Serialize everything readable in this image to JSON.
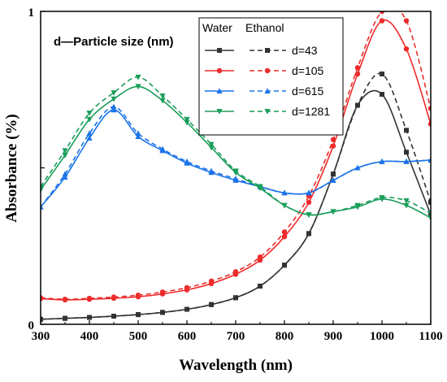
{
  "chart_data": {
    "type": "line",
    "title": "",
    "xlabel": "Wavelength (nm)",
    "ylabel": "Absorbance (%)",
    "xlim": [
      300,
      1100
    ],
    "ylim": [
      0,
      1
    ],
    "xticks": [
      300,
      400,
      500,
      600,
      700,
      800,
      900,
      1000,
      1100
    ],
    "yticks": [
      0,
      1
    ],
    "grid": false,
    "annotation": "d—Particle size (nm)",
    "legend": {
      "position": "top-right",
      "header_solid": "Water",
      "header_dashed": "Ethanol"
    },
    "x": [
      300,
      350,
      400,
      450,
      500,
      550,
      600,
      650,
      700,
      750,
      800,
      850,
      900,
      950,
      1000,
      1050,
      1100
    ],
    "series": [
      {
        "name": "d=43",
        "color": "#333333",
        "marker": "square",
        "water": [
          0.016,
          0.019,
          0.022,
          0.026,
          0.031,
          0.038,
          0.048,
          0.063,
          0.085,
          0.122,
          0.189,
          0.29,
          0.48,
          0.7,
          0.735,
          0.55,
          0.35
        ],
        "ethanol": [
          0.016,
          0.019,
          0.022,
          0.026,
          0.031,
          0.038,
          0.048,
          0.063,
          0.085,
          0.122,
          0.189,
          0.29,
          0.48,
          0.7,
          0.8,
          0.62,
          0.39
        ]
      },
      {
        "name": "d=105",
        "color": "#ee2b2b",
        "marker": "circle",
        "water": [
          0.082,
          0.078,
          0.08,
          0.083,
          0.088,
          0.097,
          0.11,
          0.13,
          0.16,
          0.205,
          0.28,
          0.39,
          0.57,
          0.8,
          0.97,
          0.88,
          0.64
        ],
        "ethanol": [
          0.085,
          0.08,
          0.083,
          0.087,
          0.093,
          0.103,
          0.117,
          0.138,
          0.168,
          0.215,
          0.295,
          0.41,
          0.59,
          0.82,
          1.0,
          0.97,
          0.69
        ]
      },
      {
        "name": "d=615",
        "color": "#1a73e8",
        "marker": "triangle-up",
        "water": [
          0.375,
          0.47,
          0.595,
          0.685,
          0.6,
          0.555,
          0.515,
          0.485,
          0.46,
          0.44,
          0.42,
          0.42,
          0.46,
          0.5,
          0.52,
          0.52,
          0.525
        ],
        "ethanol": [
          0.375,
          0.48,
          0.61,
          0.695,
          0.61,
          0.56,
          0.52,
          0.49,
          0.465,
          0.44,
          0.42,
          0.42,
          0.46,
          0.5,
          0.52,
          0.52,
          0.525
        ]
      },
      {
        "name": "d=1281",
        "color": "#1a9e5a",
        "marker": "triangle-down",
        "water": [
          0.43,
          0.54,
          0.655,
          0.72,
          0.76,
          0.715,
          0.645,
          0.565,
          0.485,
          0.435,
          0.38,
          0.35,
          0.36,
          0.375,
          0.4,
          0.38,
          0.34
        ],
        "ethanol": [
          0.44,
          0.555,
          0.675,
          0.74,
          0.79,
          0.73,
          0.655,
          0.575,
          0.49,
          0.44,
          0.38,
          0.35,
          0.36,
          0.38,
          0.405,
          0.395,
          0.355
        ]
      }
    ]
  }
}
